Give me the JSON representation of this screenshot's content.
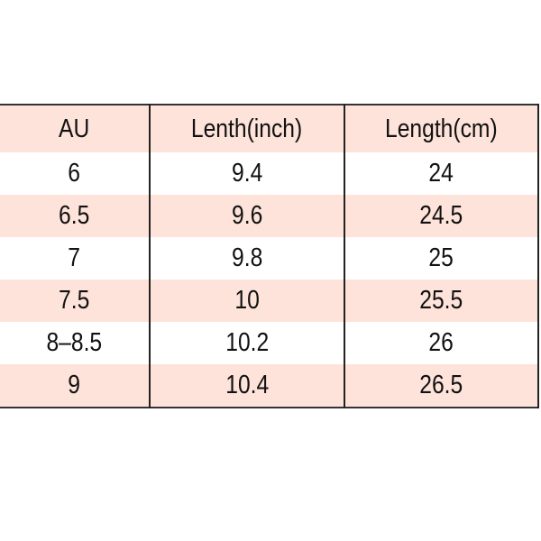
{
  "table": {
    "header": [
      "AU",
      "Lenth(inch)",
      "Length(cm)"
    ],
    "rows": [
      [
        "6",
        "9.4",
        "24"
      ],
      [
        "6.5",
        "9.6",
        "24.5"
      ],
      [
        "7",
        "9.8",
        "25"
      ],
      [
        "7.5",
        "10",
        "25.5"
      ],
      [
        "8–8.5",
        "10.2",
        "26"
      ],
      [
        "9",
        "10.4",
        "26.5"
      ]
    ]
  }
}
